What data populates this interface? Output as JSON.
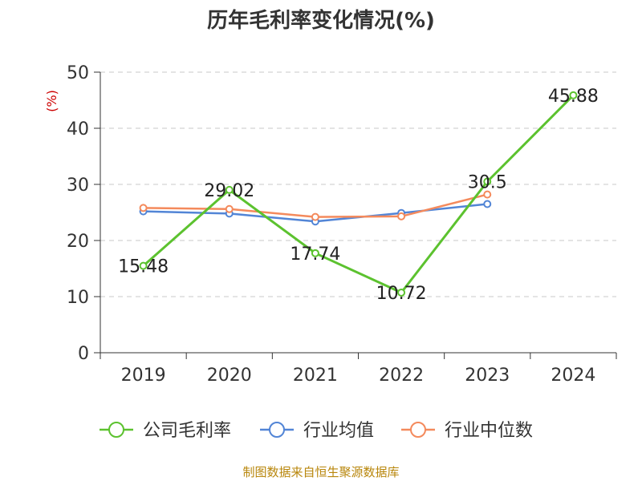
{
  "chart_data": {
    "type": "line",
    "title": "历年毛利率变化情况(%)",
    "ylabel": "(%)",
    "xlabel": "",
    "categories": [
      "2019",
      "2020",
      "2021",
      "2022",
      "2023",
      "2024"
    ],
    "ylim": [
      0,
      50
    ],
    "yticks": [
      0,
      10,
      20,
      30,
      40,
      50
    ],
    "grid": true,
    "legend_position": "bottom",
    "series": [
      {
        "name": "公司毛利率",
        "color": "#5cc22f",
        "values": [
          15.48,
          29.02,
          17.74,
          10.72,
          30.5,
          45.88
        ],
        "data_labels": [
          "15.48",
          "29.02",
          "17.74",
          "10.72",
          "30.5",
          "45.88"
        ]
      },
      {
        "name": "行业均值",
        "color": "#5285d6",
        "values": [
          25.2,
          24.8,
          23.4,
          24.9,
          26.5,
          null
        ]
      },
      {
        "name": "行业中位数",
        "color": "#f48a5c",
        "values": [
          25.8,
          25.6,
          24.2,
          24.3,
          28.2,
          null
        ]
      }
    ]
  },
  "source_text": "制图数据来自恒生聚源数据库"
}
